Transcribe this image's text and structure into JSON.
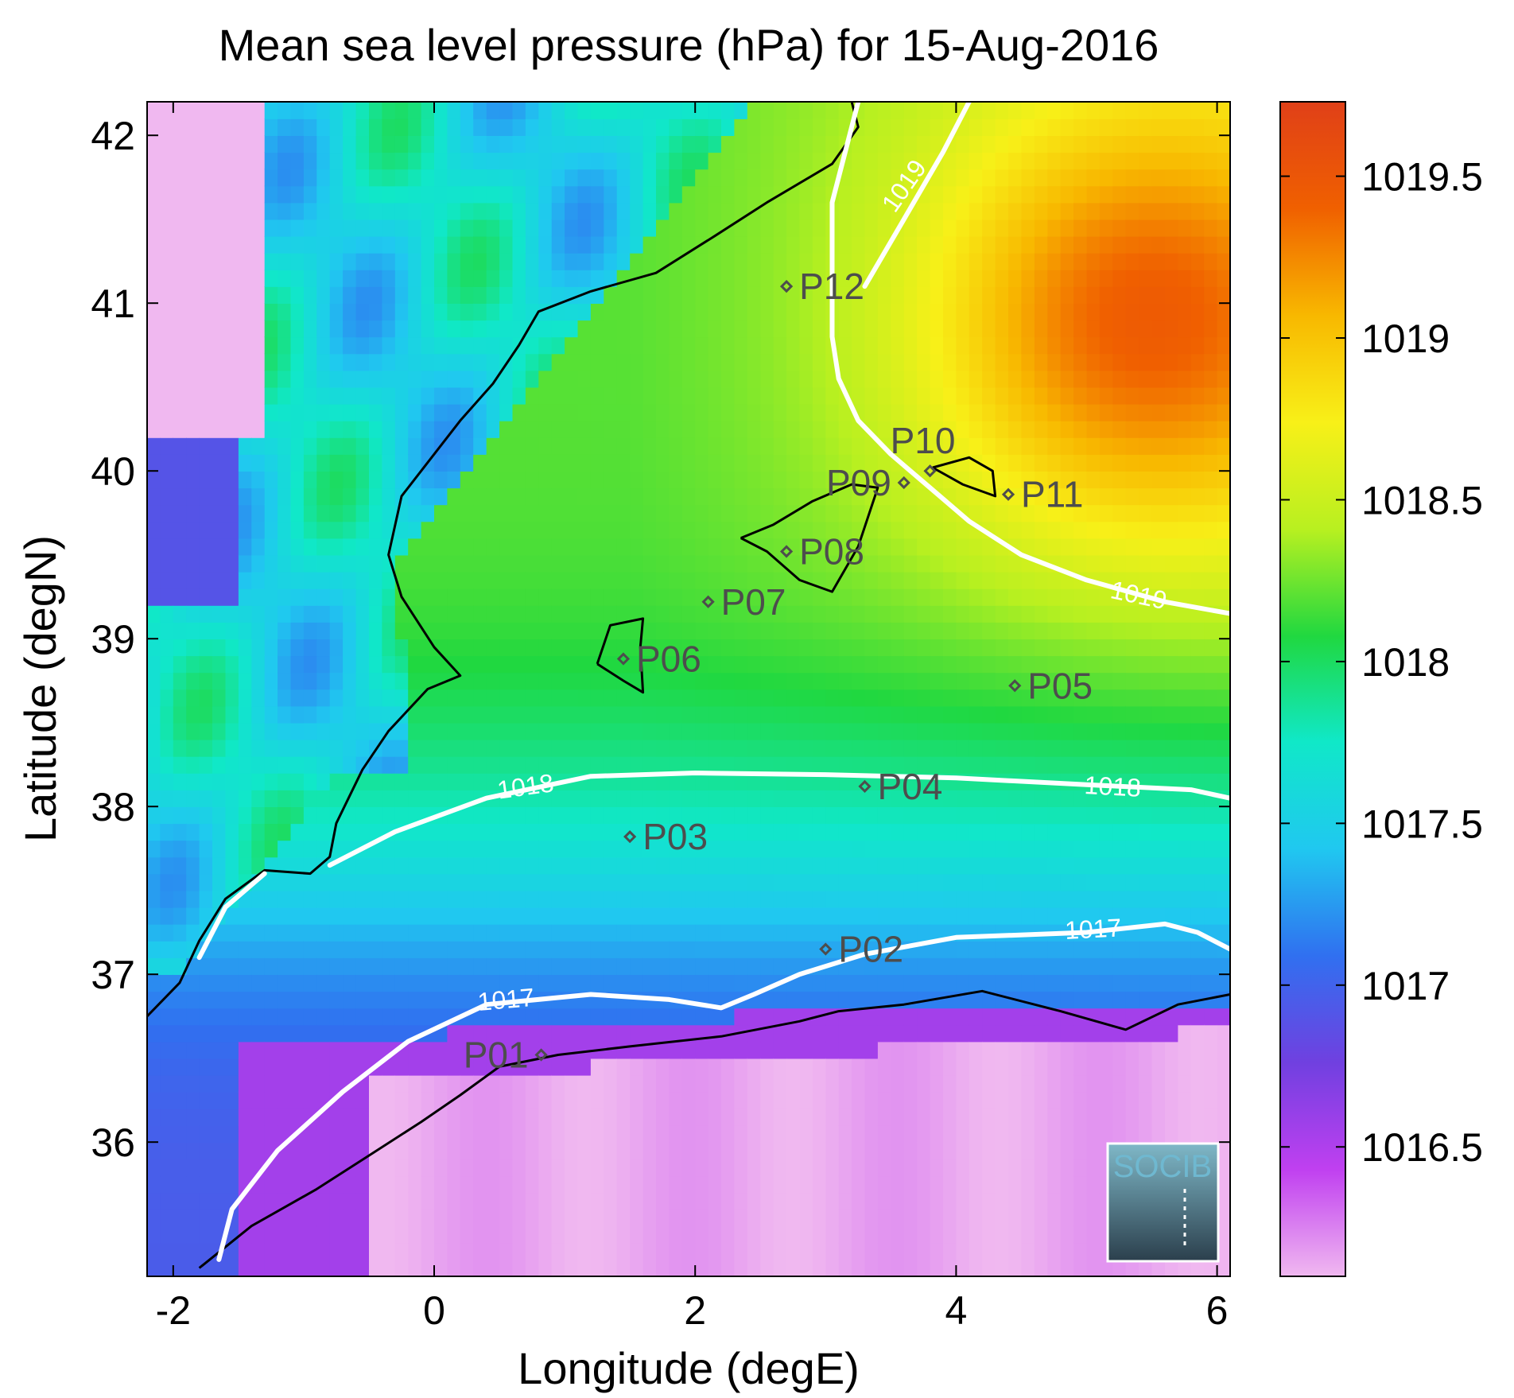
{
  "chart_data": {
    "type": "heatmap",
    "title": "Mean sea level pressure (hPa) for 15-Aug-2016",
    "xlabel": "Longitude (degE)",
    "ylabel": "Latitude (degN)",
    "xlim": [
      -2.2,
      6.1
    ],
    "ylim": [
      35.2,
      42.2
    ],
    "x_ticks": [
      -2,
      0,
      2,
      4,
      6
    ],
    "y_ticks": [
      36,
      37,
      38,
      39,
      40,
      41,
      42
    ],
    "x_tick_labels": [
      "-2",
      "0",
      "2",
      "4",
      "6"
    ],
    "y_tick_labels": [
      "36",
      "37",
      "38",
      "39",
      "40",
      "41",
      "42"
    ],
    "colorbar": {
      "min": 1016.1,
      "max": 1019.73,
      "ticks": [
        1016.5,
        1017,
        1017.5,
        1018,
        1018.5,
        1019,
        1019.5
      ],
      "tick_labels": [
        "1016.5",
        "1017",
        "1017.5",
        "1018",
        "1018.5",
        "1019",
        "1019.5"
      ],
      "colors": [
        "#f0b8f0",
        "#c040f0",
        "#7040e0",
        "#3070f0",
        "#20c8f0",
        "#10e8c8",
        "#20d840",
        "#b8f020",
        "#f8f018",
        "#f8b800",
        "#f06000",
        "#e04018"
      ]
    },
    "contours": [
      {
        "label": "1017",
        "points": [
          [
            -1.65,
            35.3
          ],
          [
            -1.55,
            35.6
          ],
          [
            -1.2,
            35.95
          ],
          [
            -0.7,
            36.3
          ],
          [
            -0.2,
            36.6
          ],
          [
            0.4,
            36.82
          ],
          [
            1.2,
            36.88
          ],
          [
            1.8,
            36.85
          ],
          [
            2.2,
            36.8
          ],
          [
            2.45,
            36.88
          ],
          [
            2.8,
            37.0
          ],
          [
            3.3,
            37.12
          ],
          [
            4.0,
            37.22
          ],
          [
            5.0,
            37.25
          ],
          [
            5.6,
            37.3
          ],
          [
            5.85,
            37.25
          ],
          [
            6.1,
            37.15
          ]
        ]
      },
      {
        "label": "1017",
        "points": [
          [
            -1.8,
            37.1
          ],
          [
            -1.6,
            37.4
          ],
          [
            -1.3,
            37.6
          ]
        ]
      },
      {
        "label": "1018",
        "points": [
          [
            -0.8,
            37.65
          ],
          [
            -0.3,
            37.85
          ],
          [
            0.4,
            38.05
          ],
          [
            1.2,
            38.18
          ],
          [
            2.0,
            38.2
          ],
          [
            3.0,
            38.19
          ],
          [
            4.0,
            38.17
          ],
          [
            5.0,
            38.13
          ],
          [
            5.8,
            38.1
          ],
          [
            6.1,
            38.05
          ]
        ]
      },
      {
        "label": "1019",
        "points": [
          [
            3.25,
            42.2
          ],
          [
            3.05,
            41.6
          ],
          [
            3.05,
            41.1
          ],
          [
            3.05,
            40.8
          ],
          [
            3.1,
            40.55
          ],
          [
            3.25,
            40.3
          ],
          [
            3.5,
            40.1
          ],
          [
            3.8,
            39.9
          ],
          [
            4.1,
            39.7
          ],
          [
            4.5,
            39.5
          ],
          [
            5.0,
            39.35
          ],
          [
            5.6,
            39.22
          ],
          [
            6.1,
            39.15
          ]
        ]
      },
      {
        "label": "1019",
        "points": [
          [
            4.1,
            42.2
          ],
          [
            3.9,
            41.9
          ],
          [
            3.6,
            41.5
          ],
          [
            3.3,
            41.1
          ]
        ]
      }
    ],
    "contour_labels": [
      {
        "text": "1017",
        "x": 0.55,
        "y": 36.85,
        "angle": -5
      },
      {
        "text": "1017",
        "x": 5.05,
        "y": 37.27,
        "angle": -3
      },
      {
        "text": "1018",
        "x": 0.7,
        "y": 38.12,
        "angle": -8
      },
      {
        "text": "1018",
        "x": 5.2,
        "y": 38.12,
        "angle": 3
      },
      {
        "text": "1019",
        "x": 3.6,
        "y": 41.7,
        "angle": -55
      },
      {
        "text": "1019",
        "x": 5.4,
        "y": 39.26,
        "angle": 12
      }
    ],
    "stations": [
      {
        "name": "P01",
        "lon": 0.82,
        "lat": 36.52,
        "label_side": "left"
      },
      {
        "name": "P02",
        "lon": 3.0,
        "lat": 37.15,
        "label_side": "right"
      },
      {
        "name": "P03",
        "lon": 1.5,
        "lat": 37.82,
        "label_side": "right"
      },
      {
        "name": "P04",
        "lon": 3.3,
        "lat": 38.12,
        "label_side": "right"
      },
      {
        "name": "P05",
        "lon": 4.45,
        "lat": 38.72,
        "label_side": "right"
      },
      {
        "name": "P06",
        "lon": 1.45,
        "lat": 38.88,
        "label_side": "right"
      },
      {
        "name": "P07",
        "lon": 2.1,
        "lat": 39.22,
        "label_side": "right"
      },
      {
        "name": "P08",
        "lon": 2.7,
        "lat": 39.52,
        "label_side": "right"
      },
      {
        "name": "P09",
        "lon": 3.6,
        "lat": 39.93,
        "label_side": "left"
      },
      {
        "name": "P10",
        "lon": 3.8,
        "lat": 40.0,
        "label_side": "above"
      },
      {
        "name": "P11",
        "lon": 4.4,
        "lat": 39.86,
        "label_side": "right"
      },
      {
        "name": "P12",
        "lon": 2.7,
        "lat": 41.1,
        "label_side": "right"
      }
    ],
    "coastlines": [
      [
        [
          -2.2,
          36.75
        ],
        [
          -1.95,
          36.95
        ],
        [
          -1.8,
          37.2
        ],
        [
          -1.6,
          37.45
        ],
        [
          -1.3,
          37.62
        ],
        [
          -0.95,
          37.6
        ],
        [
          -0.8,
          37.7
        ],
        [
          -0.75,
          37.9
        ],
        [
          -0.55,
          38.22
        ],
        [
          -0.35,
          38.45
        ],
        [
          -0.05,
          38.7
        ],
        [
          0.2,
          38.78
        ],
        [
          0.0,
          38.95
        ],
        [
          -0.25,
          39.25
        ],
        [
          -0.35,
          39.5
        ],
        [
          -0.25,
          39.85
        ],
        [
          -0.05,
          40.05
        ],
        [
          0.2,
          40.3
        ],
        [
          0.45,
          40.52
        ],
        [
          0.65,
          40.75
        ],
        [
          0.8,
          40.95
        ],
        [
          1.2,
          41.07
        ],
        [
          1.7,
          41.18
        ],
        [
          2.15,
          41.4
        ],
        [
          2.55,
          41.6
        ],
        [
          3.05,
          41.83
        ],
        [
          3.25,
          42.05
        ],
        [
          3.2,
          42.2
        ]
      ],
      [
        [
          2.35,
          39.6
        ],
        [
          2.55,
          39.52
        ],
        [
          2.8,
          39.35
        ],
        [
          3.05,
          39.28
        ],
        [
          3.25,
          39.55
        ],
        [
          3.4,
          39.9
        ],
        [
          3.2,
          39.92
        ],
        [
          2.9,
          39.82
        ],
        [
          2.6,
          39.68
        ],
        [
          2.35,
          39.6
        ]
      ],
      [
        [
          3.82,
          40.02
        ],
        [
          4.1,
          40.08
        ],
        [
          4.28,
          40.0
        ],
        [
          4.3,
          39.85
        ],
        [
          4.05,
          39.92
        ],
        [
          3.82,
          40.02
        ]
      ],
      [
        [
          1.25,
          38.85
        ],
        [
          1.45,
          38.75
        ],
        [
          1.6,
          38.68
        ],
        [
          1.58,
          38.95
        ],
        [
          1.6,
          39.12
        ],
        [
          1.35,
          39.08
        ],
        [
          1.25,
          38.85
        ]
      ],
      [
        [
          -1.8,
          35.25
        ],
        [
          -1.4,
          35.5
        ],
        [
          -0.9,
          35.72
        ],
        [
          -0.5,
          35.92
        ],
        [
          -0.1,
          36.12
        ],
        [
          0.2,
          36.28
        ],
        [
          0.5,
          36.45
        ],
        [
          0.95,
          36.52
        ],
        [
          1.5,
          36.57
        ],
        [
          2.2,
          36.63
        ],
        [
          2.8,
          36.72
        ],
        [
          3.1,
          36.78
        ],
        [
          3.6,
          36.82
        ],
        [
          4.2,
          36.9
        ],
        [
          4.8,
          36.78
        ],
        [
          5.3,
          36.67
        ],
        [
          5.7,
          36.82
        ],
        [
          6.1,
          36.88
        ]
      ]
    ]
  }
}
